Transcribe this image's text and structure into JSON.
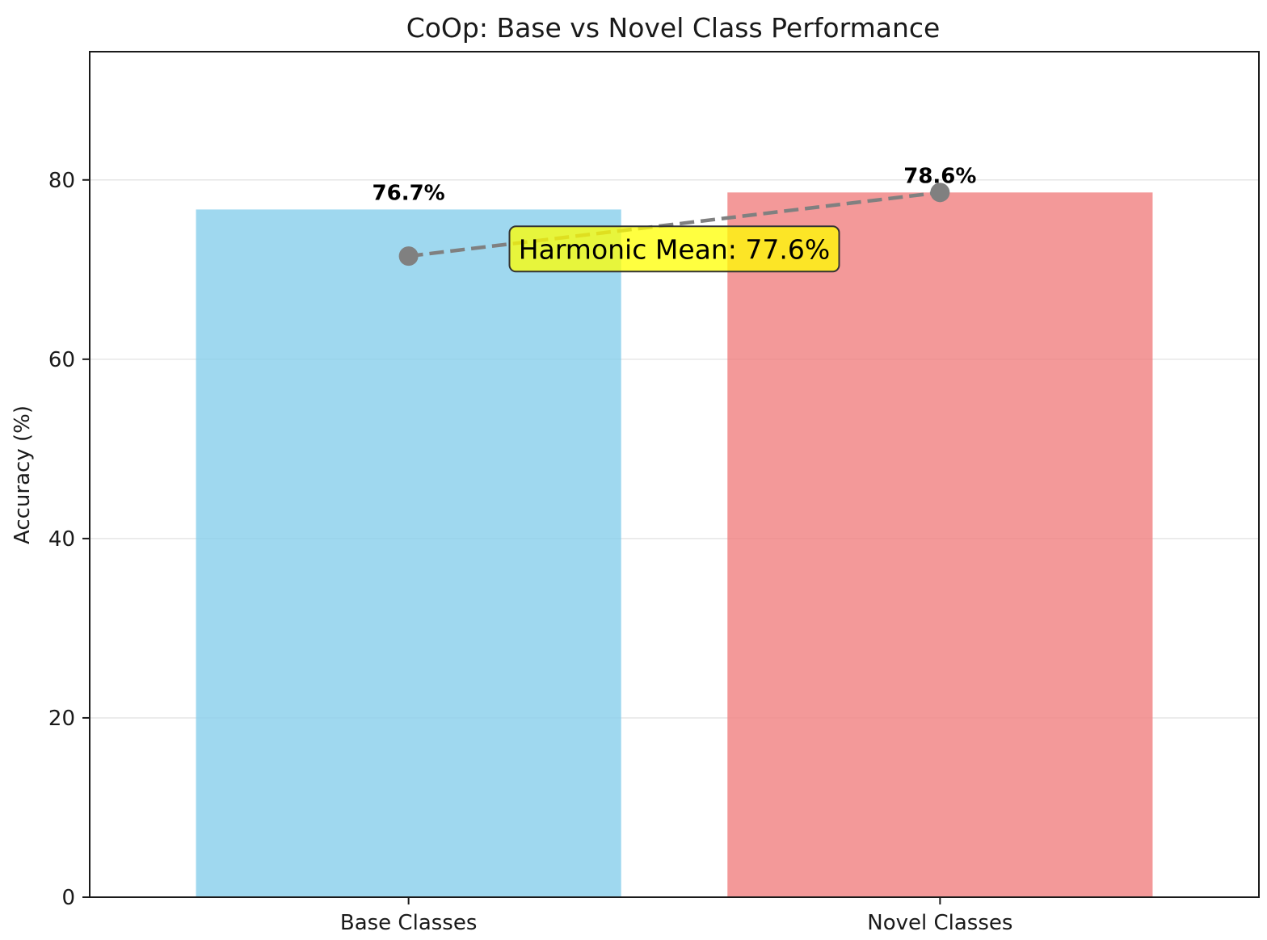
{
  "chart_data": {
    "type": "bar",
    "title": "CoOp: Base vs Novel Class Performance",
    "xlabel": "",
    "ylabel": "Accuracy (%)",
    "categories": [
      "Base Classes",
      "Novel Classes"
    ],
    "values": [
      76.7,
      78.6
    ],
    "value_labels": [
      "76.7%",
      "78.6%"
    ],
    "bar_colors": [
      "#87ceeb",
      "#f08080"
    ],
    "ylim": [
      0,
      94.3
    ],
    "yticks": [
      0,
      20,
      40,
      60,
      80
    ],
    "ytick_labels": [
      "0",
      "20",
      "40",
      "60",
      "80"
    ],
    "grid": "horizontal",
    "connector_line": {
      "style": "dashed",
      "color": "#808080",
      "points": [
        71.5,
        78.6
      ]
    },
    "annotation": {
      "text": "Harmonic Mean: 77.6%",
      "background": "#ffff00"
    }
  }
}
